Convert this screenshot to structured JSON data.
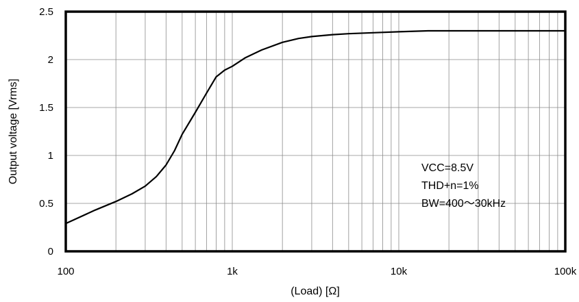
{
  "chart_data": {
    "type": "line",
    "title": "",
    "xlabel": "(Load) [Ω]",
    "ylabel": "Output voltage [Vrms]",
    "x_scale": "log",
    "xlim": [
      100,
      100000
    ],
    "ylim": [
      0,
      2.5
    ],
    "grid": true,
    "legend": "none",
    "x_ticks": [
      {
        "value": 100,
        "label": "100"
      },
      {
        "value": 1000,
        "label": "1k"
      },
      {
        "value": 10000,
        "label": "10k"
      },
      {
        "value": 100000,
        "label": "100k"
      }
    ],
    "y_ticks": [
      {
        "value": 0,
        "label": "0"
      },
      {
        "value": 0.5,
        "label": "0.5"
      },
      {
        "value": 1,
        "label": "1"
      },
      {
        "value": 1.5,
        "label": "1.5"
      },
      {
        "value": 2,
        "label": "2"
      },
      {
        "value": 2.5,
        "label": "2.5"
      }
    ],
    "annotations": [
      "VCC=8.5V",
      "THD+n=1%",
      "BW=400～30kHz"
    ],
    "series": [
      {
        "color": "#000000",
        "x": [
          100,
          150,
          200,
          250,
          300,
          350,
          400,
          450,
          500,
          600,
          700,
          800,
          900,
          1000,
          1200,
          1500,
          2000,
          2500,
          3000,
          4000,
          5000,
          7000,
          10000,
          15000,
          20000,
          30000,
          50000,
          100000
        ],
        "y": [
          0.29,
          0.43,
          0.52,
          0.6,
          0.68,
          0.78,
          0.9,
          1.05,
          1.22,
          1.45,
          1.65,
          1.82,
          1.89,
          1.93,
          2.02,
          2.1,
          2.18,
          2.22,
          2.24,
          2.26,
          2.27,
          2.28,
          2.29,
          2.3,
          2.3,
          2.3,
          2.3,
          2.3
        ]
      }
    ]
  }
}
